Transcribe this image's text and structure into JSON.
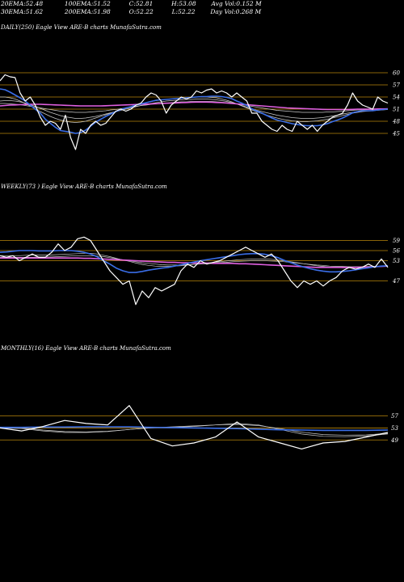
{
  "header": {
    "row1": [
      {
        "label": "20EMA:",
        "value": "52.48"
      },
      {
        "label": "100EMA:",
        "value": "51.52"
      },
      {
        "label": "C:",
        "value": "52.81"
      },
      {
        "label": "H:",
        "value": "53.08"
      },
      {
        "label": "Avg Vol:",
        "value": "0.152  M"
      }
    ],
    "row2": [
      {
        "label": "30EMA:",
        "value": "51.62"
      },
      {
        "label": "200EMA:",
        "value": "51.98"
      },
      {
        "label": "O:",
        "value": "52.22"
      },
      {
        "label": "L:",
        "value": "52.22"
      },
      {
        "label": "Day Vol:",
        "value": "0.268  M"
      }
    ]
  },
  "colors": {
    "background": "#000000",
    "price": "#ffffff",
    "ema_fast": "#3a6ee8",
    "ema_slow": "#e060e0",
    "ma_gray": "#c8c8c8",
    "grid": "#b8860b"
  },
  "chart_data": [
    {
      "type": "line",
      "label": "DAILY(250) Eagle   View  ARE-B charts MunafaSutra.com",
      "yticks": [
        60,
        57,
        54,
        51,
        48,
        45
      ],
      "ylim": [
        41,
        62
      ],
      "series": [
        {
          "role": "price",
          "values": [
            58,
            59.5,
            59,
            58.8,
            55,
            53,
            54,
            52,
            49,
            47,
            48,
            47.5,
            46,
            49.5,
            44,
            41,
            46,
            45,
            47,
            48,
            47,
            47.5,
            49,
            50.5,
            51,
            50.5,
            51,
            52,
            52.5,
            54,
            55,
            54.5,
            53,
            50,
            52,
            53,
            54,
            53.5,
            54,
            55.5,
            55,
            55.7,
            56,
            55,
            55.5,
            55,
            54,
            55,
            54,
            53,
            50,
            50,
            48,
            47,
            46,
            45.5,
            47,
            46,
            45.5,
            48,
            47,
            46,
            47,
            45.5,
            47,
            48,
            49,
            49.5,
            50,
            52,
            55,
            53,
            52,
            51.5,
            51,
            54,
            53,
            52.5
          ]
        },
        {
          "role": "ema_fast",
          "values": [
            56,
            55.8,
            55.2,
            54.5,
            53.8,
            53,
            52,
            51,
            50,
            48.5,
            47.5,
            46.5,
            45.7,
            45.5,
            45.3,
            45,
            45.2,
            45.8,
            46.8,
            47.8,
            48.5,
            49.2,
            49.8,
            50.4,
            50.9,
            51.3,
            51.6,
            52,
            52.3,
            52.6,
            52.9,
            53.2,
            53.3,
            53.4,
            53.5,
            53.6,
            53.7,
            53.8,
            53.9,
            54,
            54.1,
            54.1,
            54.2,
            54.2,
            54.1,
            53.9,
            53.6,
            53,
            52.5,
            51.9,
            51.1,
            50.5,
            50,
            49.4,
            48.8,
            48.3,
            48,
            47.7,
            47.4,
            47.2,
            47,
            46.9,
            46.9,
            46.9,
            47.1,
            47.4,
            47.9,
            48.3,
            48.8,
            49.4,
            50.1,
            50.4,
            50.6,
            50.6,
            50.6,
            50.8,
            50.9,
            51
          ]
        },
        {
          "role": "ema_slow",
          "values": [
            51.8,
            51.9,
            52,
            52.05,
            52.1,
            52.15,
            52.2,
            52.2,
            52.2,
            52.15,
            52.1,
            52.05,
            52,
            51.95,
            51.9,
            51.85,
            51.8,
            51.8,
            51.8,
            51.8,
            51.8,
            51.85,
            51.9,
            51.95,
            52,
            52.05,
            52.1,
            52.15,
            52.2,
            52.25,
            52.3,
            52.35,
            52.4,
            52.45,
            52.5,
            52.55,
            52.6,
            52.65,
            52.7,
            52.75,
            52.75,
            52.75,
            52.7,
            52.65,
            52.6,
            52.5,
            52.4,
            52.3,
            52.2,
            52.1,
            52,
            51.9,
            51.8,
            51.7,
            51.6,
            51.5,
            51.4,
            51.3,
            51.25,
            51.2,
            51.15,
            51.1,
            51.05,
            51,
            50.95,
            50.9,
            50.9,
            50.9,
            50.9,
            50.9,
            50.95,
            51,
            51,
            51,
            51,
            51.05,
            51.05,
            51.1
          ]
        },
        {
          "role": "ma_gray",
          "values": [
            54,
            54,
            53.8,
            53.5,
            53,
            52.4,
            51.8,
            51.1,
            50.4,
            49.8,
            49.2,
            48.7,
            48.3,
            48,
            47.8,
            47.7,
            47.8,
            48,
            48.4,
            48.8,
            49.2,
            49.6,
            50,
            50.4,
            50.8,
            51.2,
            51.6,
            52,
            52.3,
            52.6,
            52.9,
            53.1,
            53.3,
            53.4,
            53.5,
            53.6,
            53.7,
            53.8,
            53.9,
            54,
            54,
            54,
            53.9,
            53.8,
            53.5,
            53.2,
            52.8,
            52.3,
            51.8,
            51.3,
            50.8,
            50.3,
            49.9,
            49.5,
            49.1,
            48.8,
            48.5,
            48.3,
            48.1,
            48,
            47.9,
            47.9,
            48,
            48.1,
            48.3,
            48.5,
            48.8,
            49.1,
            49.4,
            49.7,
            50,
            50.2,
            50.4,
            50.5,
            50.6,
            50.7,
            50.8,
            50.9
          ]
        },
        {
          "role": "ma_gray",
          "values": [
            53,
            53.1,
            53.1,
            53,
            52.8,
            52.5,
            52.1,
            51.7,
            51.2,
            50.7,
            50.2,
            49.8,
            49.4,
            49.1,
            48.9,
            48.7,
            48.7,
            48.8,
            49,
            49.2,
            49.5,
            49.8,
            50.1,
            50.4,
            50.7,
            51,
            51.3,
            51.6,
            51.9,
            52.1,
            52.4,
            52.6,
            52.8,
            53,
            53.1,
            53.2,
            53.3,
            53.4,
            53.4,
            53.5,
            53.5,
            53.5,
            53.4,
            53.3,
            53.1,
            52.9,
            52.6,
            52.3,
            51.9,
            51.5,
            51.1,
            50.7,
            50.4,
            50.1,
            49.8,
            49.5,
            49.3,
            49.1,
            48.9,
            48.8,
            48.7,
            48.7,
            48.7,
            48.8,
            48.9,
            49.1,
            49.3,
            49.5,
            49.8,
            50,
            50.2,
            50.4,
            50.5,
            50.6,
            50.7,
            50.8,
            50.9,
            50.9
          ]
        },
        {
          "role": "ma_gray",
          "values": [
            52.4,
            52.4,
            52.3,
            52.2,
            52.1,
            51.9,
            51.7,
            51.5,
            51.3,
            51.1,
            50.9,
            50.7,
            50.5,
            50.4,
            50.3,
            50.2,
            50.2,
            50.2,
            50.3,
            50.4,
            50.5,
            50.6,
            50.8,
            50.9,
            51.1,
            51.3,
            51.5,
            51.7,
            51.9,
            52,
            52.2,
            52.3,
            52.4,
            52.5,
            52.6,
            52.7,
            52.8,
            52.8,
            52.9,
            52.9,
            52.9,
            52.9,
            52.9,
            52.8,
            52.7,
            52.6,
            52.5,
            52.3,
            52.1,
            51.9,
            51.7,
            51.5,
            51.3,
            51.1,
            50.9,
            50.7,
            50.6,
            50.5,
            50.4,
            50.3,
            50.2,
            50.2,
            50.2,
            50.2,
            50.2,
            50.3,
            50.3,
            50.4,
            50.5,
            50.6,
            50.7,
            50.8,
            50.8,
            50.9,
            50.9,
            51,
            51,
            51
          ]
        }
      ]
    },
    {
      "type": "line",
      "label": "WEEKLY(73                    ) Eagle   View  ARE-B charts MunafaSutra.com",
      "yticks": [
        59,
        56,
        53,
        47
      ],
      "ylim": [
        38,
        62
      ],
      "series": [
        {
          "role": "price",
          "values": [
            54.5,
            54,
            54.5,
            53,
            54,
            55,
            54,
            54,
            55.5,
            58,
            56,
            57,
            59.5,
            60,
            59,
            56,
            53,
            50,
            48,
            46,
            47,
            40,
            44,
            42,
            45,
            44,
            45,
            46,
            50,
            52,
            51,
            53,
            52,
            52.5,
            53,
            54,
            55,
            56,
            57,
            56,
            55,
            54,
            55,
            53,
            50,
            47,
            45,
            47,
            46,
            47,
            45.5,
            47,
            48,
            50,
            51,
            50.5,
            51,
            52,
            51,
            53.5,
            51
          ]
        },
        {
          "role": "ema_fast",
          "values": [
            55.5,
            55.6,
            55.8,
            56,
            56,
            56,
            55.9,
            55.9,
            55.9,
            56,
            56,
            56,
            55.8,
            55.5,
            55,
            54.2,
            53,
            52,
            50.8,
            50,
            49.5,
            49.5,
            49.8,
            50.2,
            50.5,
            50.8,
            51,
            51.4,
            51.8,
            52.2,
            52.6,
            53,
            53.3,
            53.6,
            53.9,
            54.2,
            54.5,
            54.8,
            55,
            55.1,
            55.1,
            54.9,
            54.5,
            53.9,
            53.1,
            52.4,
            51.7,
            51.1,
            50.6,
            50.2,
            49.9,
            49.7,
            49.7,
            49.8,
            50,
            50.3,
            50.6,
            50.9,
            51.2,
            51.4,
            51.5
          ]
        },
        {
          "role": "ema_slow",
          "values": [
            53.8,
            53.8,
            53.8,
            53.8,
            53.8,
            53.8,
            53.8,
            53.8,
            53.8,
            53.8,
            53.8,
            53.8,
            53.8,
            53.7,
            53.7,
            53.6,
            53.5,
            53.4,
            53.3,
            53.2,
            53.1,
            53,
            52.9,
            52.8,
            52.7,
            52.6,
            52.5,
            52.5,
            52.4,
            52.4,
            52.3,
            52.3,
            52.3,
            52.2,
            52.2,
            52.2,
            52.2,
            52.1,
            52.1,
            52,
            51.9,
            51.8,
            51.7,
            51.6,
            51.5,
            51.4,
            51.3,
            51.2,
            51.1,
            51,
            51,
            51,
            51,
            51,
            51,
            51,
            51.1,
            51.1,
            51.2,
            51.3,
            51.4
          ]
        },
        {
          "role": "ma_gray",
          "values": [
            54.5,
            54.5,
            54.5,
            54.5,
            54.6,
            54.7,
            54.7,
            54.7,
            54.7,
            54.8,
            54.9,
            55,
            55.1,
            55.2,
            55.2,
            55,
            54.6,
            54.2,
            53.7,
            53.2,
            52.8,
            52.3,
            51.9,
            51.6,
            51.4,
            51.3,
            51.3,
            51.4,
            51.5,
            51.7,
            51.9,
            52.1,
            52.3,
            52.5,
            52.7,
            52.9,
            53.1,
            53.3,
            53.4,
            53.5,
            53.5,
            53.5,
            53.4,
            53.2,
            53,
            52.7,
            52.4,
            52.1,
            51.8,
            51.5,
            51.3,
            51.1,
            51,
            50.9,
            50.9,
            50.9,
            51,
            51.1,
            51.2,
            51.3,
            51.4
          ]
        },
        {
          "role": "ma_gray",
          "values": [
            54,
            54,
            54,
            54,
            54,
            54,
            54.1,
            54.1,
            54.1,
            54.2,
            54.3,
            54.4,
            54.5,
            54.5,
            54.5,
            54.4,
            54.2,
            53.9,
            53.6,
            53.3,
            53,
            52.7,
            52.4,
            52.2,
            52,
            51.8,
            51.7,
            51.7,
            51.7,
            51.8,
            51.9,
            52,
            52.1,
            52.3,
            52.4,
            52.5,
            52.7,
            52.8,
            52.9,
            53,
            53,
            53,
            52.9,
            52.8,
            52.7,
            52.5,
            52.3,
            52.1,
            51.9,
            51.7,
            51.6,
            51.4,
            51.3,
            51.3,
            51.2,
            51.2,
            51.2,
            51.3,
            51.3,
            51.4,
            51.4
          ]
        }
      ]
    },
    {
      "type": "line",
      "label": "MONTHLY(16) Eagle   View  ARE-B charts MunafaSutra.com",
      "yticks": [
        57,
        53,
        49
      ],
      "ylim": [
        38,
        65
      ],
      "series": [
        {
          "role": "price",
          "values": [
            53,
            52,
            53.5,
            55.5,
            54.5,
            54,
            60.5,
            49.5,
            47,
            48,
            50,
            55,
            50,
            48,
            46,
            48,
            48.5,
            50,
            51.5
          ]
        },
        {
          "role": "ema_fast",
          "values": [
            53.2,
            53.2,
            53.3,
            53.3,
            53.4,
            53.4,
            53.4,
            53.2,
            53.1,
            53,
            52.9,
            52.8,
            52.6,
            52.4,
            52.3,
            52.2,
            52.2,
            52.2,
            52.3
          ]
        },
        {
          "role": "ma_gray",
          "values": [
            53,
            52.8,
            52,
            51.5,
            51.5,
            51.8,
            52.5,
            53,
            53.2,
            53.5,
            54,
            54.5,
            54,
            52.5,
            51,
            50.2,
            50.1,
            50.3,
            51
          ]
        },
        {
          "role": "ma_gray",
          "values": [
            53.3,
            53,
            52.3,
            51.8,
            51.7,
            51.9,
            52.5,
            53,
            53.4,
            53.7,
            54,
            54.2,
            53.8,
            52.8,
            51.6,
            50.8,
            50.6,
            50.7,
            51.2
          ]
        }
      ]
    }
  ]
}
